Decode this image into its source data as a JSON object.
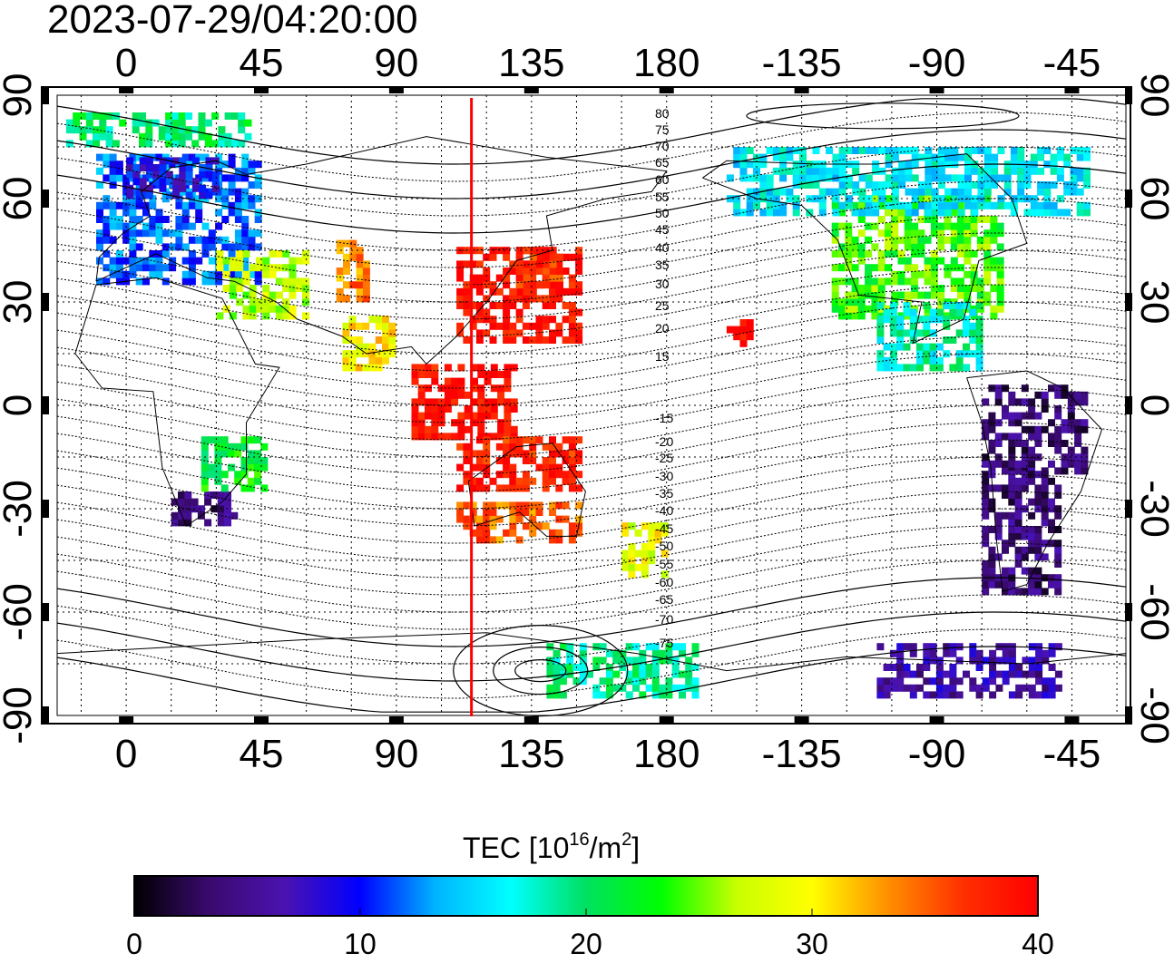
{
  "timestamp": "2023-07-29/04:20:00",
  "map": {
    "lon_ticks": [
      {
        "lon": 0,
        "label": "0"
      },
      {
        "lon": 45,
        "label": "45"
      },
      {
        "lon": 90,
        "label": "90"
      },
      {
        "lon": 135,
        "label": "135"
      },
      {
        "lon": 180,
        "label": "180"
      },
      {
        "lon": 225,
        "label": "-135"
      },
      {
        "lon": 270,
        "label": "-90"
      },
      {
        "lon": 315,
        "label": "-45"
      }
    ],
    "lat_ticks": [
      {
        "lat": 90,
        "label": "90"
      },
      {
        "lat": 60,
        "label": "60"
      },
      {
        "lat": 30,
        "label": "30"
      },
      {
        "lat": 0,
        "label": "0"
      },
      {
        "lat": -30,
        "label": "-30"
      },
      {
        "lat": -60,
        "label": "-60"
      },
      {
        "lat": -90,
        "label": "-90"
      }
    ],
    "lon_range": [
      -23,
      333
    ],
    "lat_range": [
      -90,
      90
    ],
    "terminator_lon": 115,
    "contour_labels_north": [
      "80",
      "75",
      "70",
      "65",
      "60",
      "55",
      "50",
      "45",
      "40",
      "35",
      "30",
      "25",
      "20",
      "15"
    ],
    "contour_labels_south": [
      "-15",
      "-20",
      "-25",
      "-30",
      "-35",
      "-40",
      "-45",
      "-50",
      "-55",
      "-60",
      "-65",
      "-70",
      "-75"
    ]
  },
  "colorbar": {
    "title_main": "TEC  [10",
    "title_sup": "16",
    "title_unit": "/m",
    "title_sup2": "2",
    "title_close": "]",
    "tick_labels": [
      "0",
      "10",
      "20",
      "30",
      "40"
    ],
    "range": [
      0,
      40
    ],
    "colors": [
      "#000000",
      "#3a0a6e",
      "#4b12b0",
      "#0000ff",
      "#00b4ff",
      "#00ffff",
      "#00e060",
      "#00ff00",
      "#c8ff00",
      "#ffff00",
      "#ff9000",
      "#ff3000",
      "#ff0000"
    ]
  },
  "colors": {
    "terminator": "#ff0000",
    "frame": "#000000"
  },
  "tec_regions": [
    {
      "name": "europe",
      "lon": [
        -10,
        45
      ],
      "lat": [
        35,
        72
      ],
      "tec": 12
    },
    {
      "name": "scandinavia",
      "lon": [
        0,
        30
      ],
      "lat": [
        60,
        72
      ],
      "tec": 9
    },
    {
      "name": "arctic-europe",
      "lon": [
        -20,
        40
      ],
      "lat": [
        75,
        85
      ],
      "tec": 20
    },
    {
      "name": "mideast",
      "lon": [
        30,
        60
      ],
      "lat": [
        25,
        45
      ],
      "tec": 27
    },
    {
      "name": "central-asia",
      "lon": [
        70,
        80
      ],
      "lat": [
        30,
        48
      ],
      "tec": 34
    },
    {
      "name": "india",
      "lon": [
        72,
        88
      ],
      "lat": [
        10,
        25
      ],
      "tec": 30
    },
    {
      "name": "east-asia",
      "lon": [
        110,
        150
      ],
      "lat": [
        18,
        45
      ],
      "tec": 39
    },
    {
      "name": "japan",
      "lon": [
        130,
        145
      ],
      "lat": [
        30,
        45
      ],
      "tec": 37
    },
    {
      "name": "se-asia",
      "lon": [
        95,
        130
      ],
      "lat": [
        -10,
        12
      ],
      "tec": 39
    },
    {
      "name": "australia-n",
      "lon": [
        110,
        150
      ],
      "lat": [
        -25,
        -10
      ],
      "tec": 38
    },
    {
      "name": "australia-s",
      "lon": [
        110,
        150
      ],
      "lat": [
        -40,
        -28
      ],
      "tec": 35
    },
    {
      "name": "new-zealand",
      "lon": [
        165,
        180
      ],
      "lat": [
        -50,
        -35
      ],
      "tec": 29
    },
    {
      "name": "hawaii",
      "lon": [
        200,
        208
      ],
      "lat": [
        17,
        24
      ],
      "tec": 39
    },
    {
      "name": "north-america",
      "lon": [
        235,
        290
      ],
      "lat": [
        25,
        60
      ],
      "tec": 24
    },
    {
      "name": "canada",
      "lon": [
        200,
        320
      ],
      "lat": [
        55,
        75
      ],
      "tec": 16
    },
    {
      "name": "mexico",
      "lon": [
        250,
        285
      ],
      "lat": [
        10,
        30
      ],
      "tec": 18
    },
    {
      "name": "south-america-n",
      "lon": [
        285,
        320
      ],
      "lat": [
        -20,
        5
      ],
      "tec": 4
    },
    {
      "name": "south-america-s",
      "lon": [
        285,
        310
      ],
      "lat": [
        -55,
        -20
      ],
      "tec": 4
    },
    {
      "name": "southern-africa",
      "lon": [
        15,
        35
      ],
      "lat": [
        -35,
        -25
      ],
      "tec": 4
    },
    {
      "name": "east-africa",
      "lon": [
        25,
        45
      ],
      "lat": [
        -25,
        -10
      ],
      "tec": 22
    },
    {
      "name": "antarctic-pacific",
      "lon": [
        140,
        190
      ],
      "lat": [
        -85,
        -70
      ],
      "tec": 19
    },
    {
      "name": "antarctic-atlantic",
      "lon": [
        250,
        310
      ],
      "lat": [
        -85,
        -70
      ],
      "tec": 6
    }
  ]
}
